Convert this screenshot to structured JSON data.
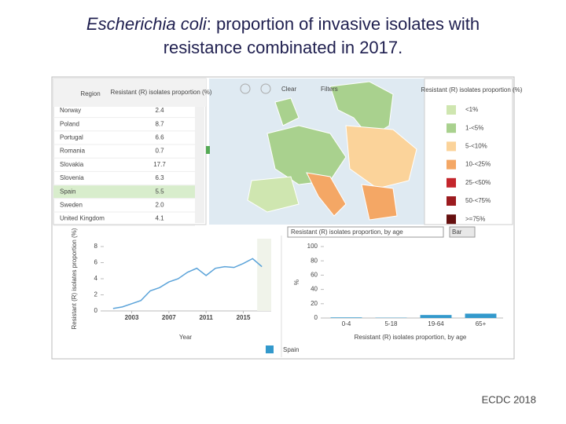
{
  "title": {
    "italic": "Escherichia coli",
    "line1": ": proportion of invasive isolates with",
    "line2": "resistance combinated in 2017."
  },
  "footer": "ECDC 2018",
  "toolbar": [
    "Clear",
    "Filters"
  ],
  "table": {
    "headers": [
      "Region",
      "Resistant (R) isolates proportion (%)"
    ],
    "rows": [
      [
        "Norway",
        "2.4"
      ],
      [
        "Poland",
        "8.7"
      ],
      [
        "Portugal",
        "6.6"
      ],
      [
        "Romania",
        "0.7"
      ],
      [
        "Slovakia",
        "17.7"
      ],
      [
        "Slovenia",
        "6.3"
      ],
      [
        "Spain",
        "5.5"
      ],
      [
        "Sweden",
        "2.0"
      ],
      [
        "United Kingdom",
        "4.1"
      ]
    ],
    "selected_row": 6
  },
  "map_legend": {
    "title": "Resistant (R) isolates proportion (%)",
    "items": [
      {
        "label": "<1%",
        "color": "#cfe6b0"
      },
      {
        "label": "1-<5%",
        "color": "#a9d18e"
      },
      {
        "label": "5-<10%",
        "color": "#fbd39a"
      },
      {
        "label": "10-<25%",
        "color": "#f4a765"
      },
      {
        "label": "25-<50%",
        "color": "#c4262c"
      },
      {
        "label": "50-<75%",
        "color": "#9c1b1f"
      },
      {
        "label": ">=75%",
        "color": "#66100f"
      }
    ]
  },
  "dropdown": {
    "text": "Resistant (R) isolates proportion, by age",
    "button": "Bar"
  },
  "chart_data": [
    {
      "type": "line",
      "y_label": "Resistant (R) isolates proportion (%)",
      "x_label": "Year",
      "x": [
        2001,
        2002,
        2003,
        2004,
        2005,
        2006,
        2007,
        2008,
        2009,
        2010,
        2011,
        2012,
        2013,
        2014,
        2015,
        2016,
        2017
      ],
      "series": [
        {
          "name": "Spain",
          "color": "#5ba3d9",
          "values": [
            0.3,
            0.5,
            0.9,
            1.3,
            2.5,
            2.9,
            3.6,
            4.0,
            4.8,
            5.3,
            4.4,
            5.3,
            5.5,
            5.4,
            5.9,
            6.5,
            5.5
          ]
        }
      ],
      "xlim": [
        2000,
        2018
      ],
      "xticks": [
        2003,
        2007,
        2011,
        2015
      ],
      "ylim": [
        0,
        8
      ],
      "yticks": [
        0,
        2,
        4,
        6,
        8
      ]
    },
    {
      "type": "bar",
      "y_label": "%",
      "x_label": "Resistant (R) isolates proportion, by age",
      "categories": [
        "0-4",
        "5-18",
        "19-64",
        "65+"
      ],
      "series": [
        {
          "name": "Spain",
          "color": "#3399cc",
          "values": [
            0.8,
            0.4,
            4.2,
            6.1
          ]
        }
      ],
      "ylim": [
        0,
        100
      ],
      "yticks": [
        0,
        20,
        40,
        60,
        80,
        100
      ]
    }
  ]
}
